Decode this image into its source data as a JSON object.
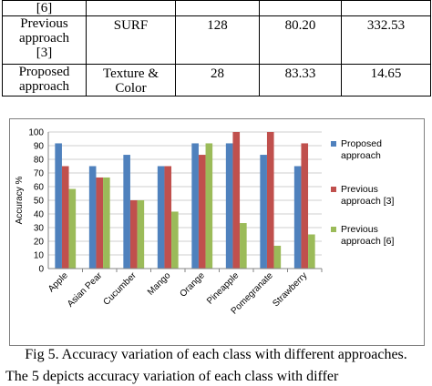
{
  "table": {
    "rows": [
      {
        "cells": [
          "[6]",
          "",
          "",
          "",
          ""
        ]
      },
      {
        "lines": [
          "Previous",
          "approach",
          "[3]"
        ],
        "cells": [
          "SURF",
          "128",
          "80.20",
          "332.53"
        ]
      },
      {
        "lines": [
          "Proposed",
          "approach"
        ],
        "cells": [
          "Texture &",
          "28",
          "83.33",
          "14.65"
        ],
        "cell1_line2": "Color"
      }
    ]
  },
  "chart_data": {
    "type": "bar",
    "ylabel": "Accuracy %",
    "ylim": [
      0,
      100
    ],
    "yticks": [
      0,
      10,
      20,
      30,
      40,
      50,
      60,
      70,
      80,
      90,
      100
    ],
    "grid": true,
    "legend_position": "right",
    "categories": [
      "Apple",
      "Asian Pear",
      "Cucumber",
      "Mango",
      "Orange",
      "Pineapple",
      "Pomegranate",
      "Strawberry"
    ],
    "series": [
      {
        "name": "Proposed approach",
        "legend_lines": [
          "Proposed",
          "approach"
        ],
        "color": "#4f81bd",
        "values": [
          91.7,
          75,
          83.3,
          75,
          91.7,
          91.7,
          83.3,
          75
        ]
      },
      {
        "name": "Previous approach [3]",
        "legend_lines": [
          "Previous",
          "approach [3]"
        ],
        "color": "#c0504d",
        "values": [
          75,
          66.7,
          50,
          75,
          83.3,
          100,
          100,
          91.7
        ]
      },
      {
        "name": "Previous approach [6]",
        "legend_lines": [
          "Previous",
          "approach [6]"
        ],
        "color": "#9bbb59",
        "values": [
          58.3,
          66.7,
          50,
          41.7,
          91.7,
          33.3,
          16.7,
          25
        ]
      }
    ]
  },
  "caption": "Fig 5. Accuracy variation of each class with different approaches.",
  "next_text": "The 5 depicts accuracy variation of each class with differ"
}
